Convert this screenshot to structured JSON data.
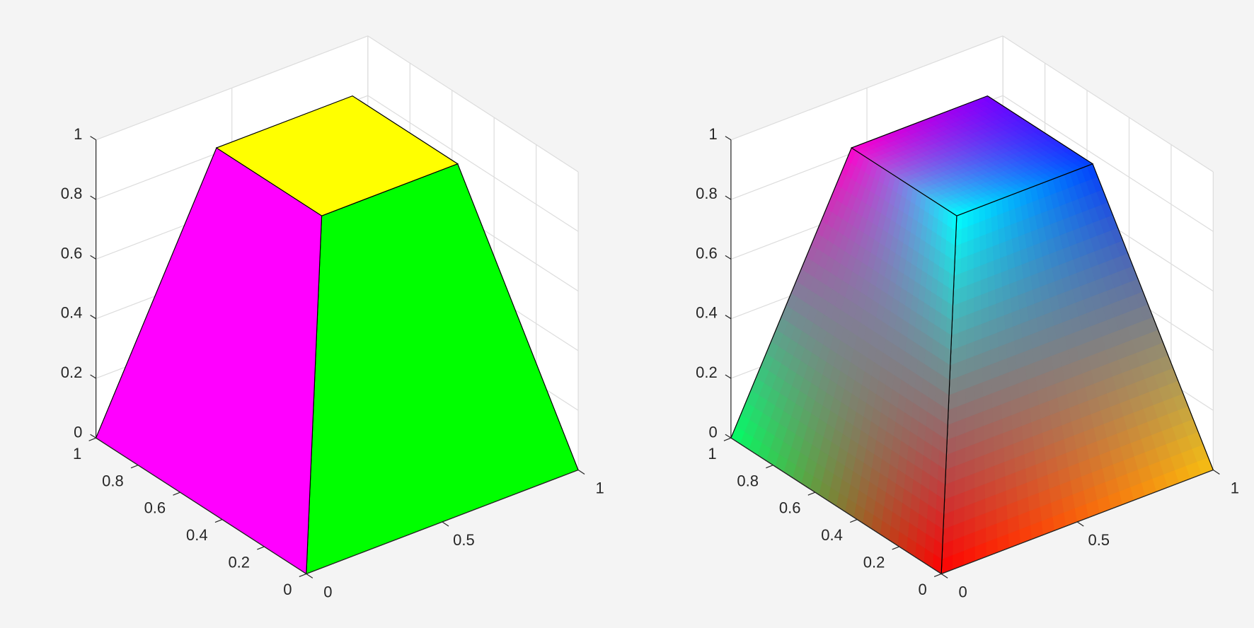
{
  "chart_data": [
    {
      "type": "patch3d",
      "shading": "flat",
      "xlim": [
        0,
        1
      ],
      "ylim": [
        0,
        1
      ],
      "zlim": [
        0,
        1
      ],
      "xticks": [
        0,
        0.5,
        1
      ],
      "yticks": [
        0,
        0.2,
        0.4,
        0.6,
        0.8,
        1
      ],
      "zticks": [
        0,
        0.2,
        0.4,
        0.6,
        0.8,
        1
      ],
      "grid": true,
      "vertices": [
        [
          0,
          0,
          0
        ],
        [
          1,
          0,
          0
        ],
        [
          1,
          1,
          0
        ],
        [
          0,
          1,
          0
        ],
        [
          0.25,
          0.25,
          1
        ],
        [
          0.75,
          0.25,
          1
        ],
        [
          0.75,
          0.75,
          1
        ],
        [
          0.25,
          0.75,
          1
        ]
      ],
      "faces": [
        [
          0,
          1,
          5,
          4
        ],
        [
          0,
          3,
          7,
          4
        ],
        [
          4,
          5,
          6,
          7
        ]
      ],
      "face_colors": [
        "#00ff00",
        "#ff00ff",
        "#ffff00"
      ],
      "edge_color": "#000000"
    },
    {
      "type": "patch3d",
      "shading": "interp",
      "xlim": [
        0,
        1
      ],
      "ylim": [
        0,
        1
      ],
      "zlim": [
        0,
        1
      ],
      "xticks": [
        0,
        0.5,
        1
      ],
      "yticks": [
        0,
        0.2,
        0.4,
        0.6,
        0.8,
        1
      ],
      "zticks": [
        0,
        0.2,
        0.4,
        0.6,
        0.8,
        1
      ],
      "grid": true,
      "vertices": [
        [
          0,
          0,
          0
        ],
        [
          1,
          0,
          0
        ],
        [
          1,
          1,
          0
        ],
        [
          0,
          1,
          0
        ],
        [
          0.25,
          0.25,
          1
        ],
        [
          0.75,
          0.25,
          1
        ],
        [
          0.75,
          0.75,
          1
        ],
        [
          0.25,
          0.75,
          1
        ]
      ],
      "faces": [
        [
          0,
          1,
          5,
          4
        ],
        [
          0,
          3,
          7,
          4
        ],
        [
          4,
          5,
          6,
          7
        ]
      ],
      "vertex_colors": [
        "#ff0000",
        "#f8c010",
        null,
        "#00ff66",
        "#00ffff",
        "#0040ff",
        "#7a00ff",
        "#ff00cc"
      ],
      "edge_color": "#000000"
    }
  ]
}
